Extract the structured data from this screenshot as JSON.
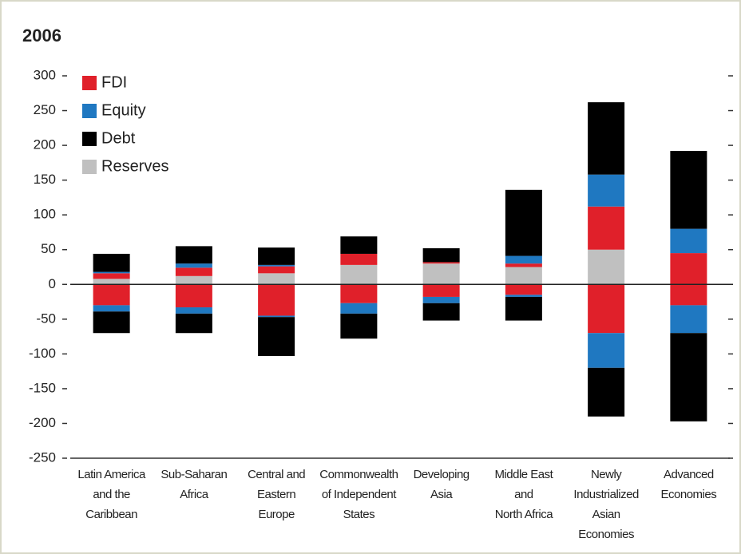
{
  "chart_data": {
    "type": "bar",
    "stacked": true,
    "title": "2006",
    "categories": [
      [
        "Latin America",
        "and the",
        "Caribbean"
      ],
      [
        "Sub-Saharan",
        "Africa"
      ],
      [
        "Central and",
        "Eastern",
        "Europe"
      ],
      [
        "Commonwealth",
        "of Independent",
        "States"
      ],
      [
        "Developing",
        "Asia"
      ],
      [
        "Middle East",
        "and",
        "North Africa"
      ],
      [
        "Newly",
        "Industrialized",
        "Asian",
        "Economies"
      ],
      [
        "Advanced",
        "Economies"
      ]
    ],
    "series": [
      {
        "name": "FDI",
        "color": "#e0202a",
        "values": [
          8,
          12,
          10,
          16,
          2,
          5,
          62,
          45
        ],
        "negative_values": [
          -30,
          -33,
          -45,
          -27,
          -18,
          -15,
          -70,
          -30
        ]
      },
      {
        "name": "Equity",
        "color": "#1f78c1",
        "values": [
          2,
          6,
          2,
          0,
          0,
          11,
          46,
          35
        ],
        "negative_values": [
          -9,
          -9,
          -2,
          -15,
          -9,
          -3,
          -50,
          -40
        ]
      },
      {
        "name": "Debt",
        "color": "#000000",
        "values": [
          26,
          25,
          25,
          25,
          20,
          95,
          104,
          112
        ],
        "negative_values": [
          -31,
          -28,
          -56,
          -36,
          -25,
          -34,
          -70,
          -127
        ]
      },
      {
        "name": "Reserves",
        "color": "#c0c0c0",
        "values": [
          8,
          12,
          16,
          28,
          30,
          25,
          50,
          0
        ],
        "negative_values": [
          0,
          0,
          0,
          0,
          0,
          0,
          0,
          0
        ]
      }
    ],
    "stack_order": [
      3,
      0,
      1,
      2
    ],
    "ylim": [
      -250,
      300
    ],
    "yticks": [
      -250,
      -200,
      -150,
      -100,
      -50,
      0,
      50,
      100,
      150,
      200,
      250,
      300
    ],
    "legend": "top-left"
  }
}
